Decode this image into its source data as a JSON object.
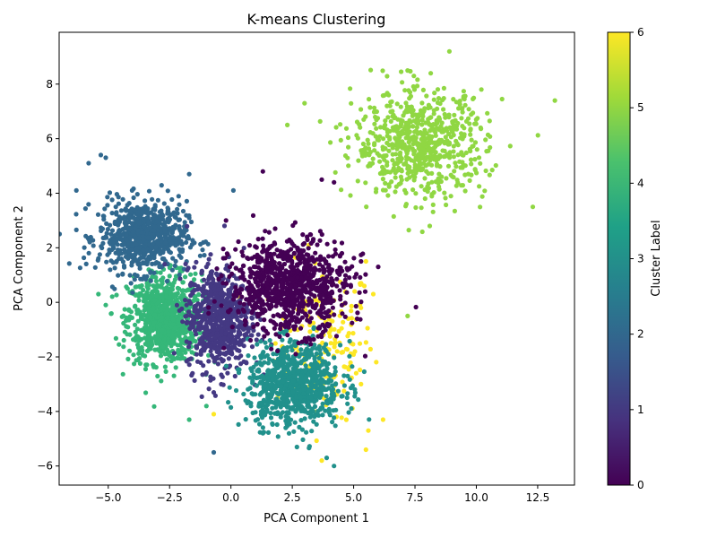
{
  "chart_data": {
    "type": "scatter",
    "title": "K-means Clustering",
    "xlabel": "PCA Component 1",
    "ylabel": "PCA Component 2",
    "xlim": [
      -7.0,
      14.0
    ],
    "ylim": [
      -6.7,
      9.9
    ],
    "xticks": [
      -5.0,
      -2.5,
      0.0,
      2.5,
      5.0,
      7.5,
      10.0,
      12.5
    ],
    "xtick_labels": [
      "−5.0",
      "−2.5",
      "0.0",
      "2.5",
      "5.0",
      "7.5",
      "10.0",
      "12.5"
    ],
    "yticks": [
      -6,
      -4,
      -2,
      0,
      2,
      4,
      6,
      8
    ],
    "ytick_labels": [
      "−6",
      "−4",
      "−2",
      "0",
      "2",
      "4",
      "6",
      "8"
    ],
    "grid": false,
    "colormap": "viridis",
    "colorbar": {
      "label": "Cluster Label",
      "range": [
        0,
        6
      ],
      "ticks": [
        "0",
        "1",
        "2",
        "3",
        "4",
        "5",
        "6"
      ]
    },
    "series": [
      {
        "label": 0,
        "color": "#440154",
        "center": [
          2.4,
          0.6
        ],
        "spread": [
          1.2,
          0.85
        ],
        "count": 900,
        "points": [
          [
            1.3,
            4.8
          ],
          [
            3.7,
            4.5
          ],
          [
            4.2,
            4.4
          ],
          [
            6.0,
            1.3
          ],
          [
            -0.2,
            3.0
          ],
          [
            5.3,
            1.5
          ]
        ]
      },
      {
        "label": 1,
        "color": "#443983",
        "center": [
          -0.5,
          -0.6
        ],
        "spread": [
          0.65,
          0.95
        ],
        "count": 700,
        "points": [
          [
            -0.7,
            -3.3
          ],
          [
            -1.0,
            1.3
          ]
        ]
      },
      {
        "label": 2,
        "color": "#31688e",
        "center": [
          -3.6,
          2.4
        ],
        "spread": [
          0.9,
          0.65
        ],
        "count": 700,
        "points": [
          [
            -5.3,
            5.4
          ],
          [
            -5.1,
            5.3
          ],
          [
            -5.8,
            5.1
          ],
          [
            -6.3,
            4.1
          ],
          [
            -1.7,
            4.7
          ],
          [
            0.1,
            4.1
          ],
          [
            -0.7,
            -5.5
          ]
        ]
      },
      {
        "label": 3,
        "color": "#21918c",
        "center": [
          2.6,
          -3.0
        ],
        "spread": [
          0.95,
          0.75
        ],
        "count": 800,
        "points": [
          [
            4.2,
            -6.0
          ],
          [
            3.9,
            -5.7
          ],
          [
            1.3,
            -4.8
          ],
          [
            0.6,
            -3.6
          ]
        ]
      },
      {
        "label": 4,
        "color": "#35b779",
        "center": [
          -2.7,
          -0.6
        ],
        "spread": [
          0.75,
          0.8
        ],
        "count": 800,
        "points": [
          [
            -1.0,
            -3.8
          ],
          [
            -1.7,
            -4.3
          ],
          [
            -5.1,
            -0.1
          ],
          [
            -5.4,
            0.3
          ]
        ]
      },
      {
        "label": 5,
        "color": "#90d743",
        "center": [
          7.7,
          5.8
        ],
        "spread": [
          1.35,
          0.95
        ],
        "count": 700,
        "points": [
          [
            8.9,
            9.2
          ],
          [
            7.2,
            8.5
          ],
          [
            13.2,
            7.4
          ],
          [
            12.3,
            3.5
          ],
          [
            2.3,
            6.5
          ],
          [
            8.1,
            2.8
          ],
          [
            7.2,
            -0.5
          ],
          [
            3.0,
            7.3
          ]
        ]
      },
      {
        "label": 6,
        "color": "#fde725",
        "center": [
          3.8,
          -1.4
        ],
        "spread": [
          1.0,
          1.4
        ],
        "count": 180,
        "points": [
          [
            5.5,
            -5.4
          ],
          [
            3.7,
            -5.8
          ],
          [
            6.2,
            -4.3
          ],
          [
            5.6,
            -4.7
          ],
          [
            4.3,
            -4.2
          ],
          [
            -0.7,
            -4.1
          ],
          [
            5.5,
            1.5
          ],
          [
            5.8,
            0.3
          ],
          [
            4.9,
            -1.5
          ],
          [
            5.3,
            -3.0
          ]
        ]
      }
    ]
  }
}
